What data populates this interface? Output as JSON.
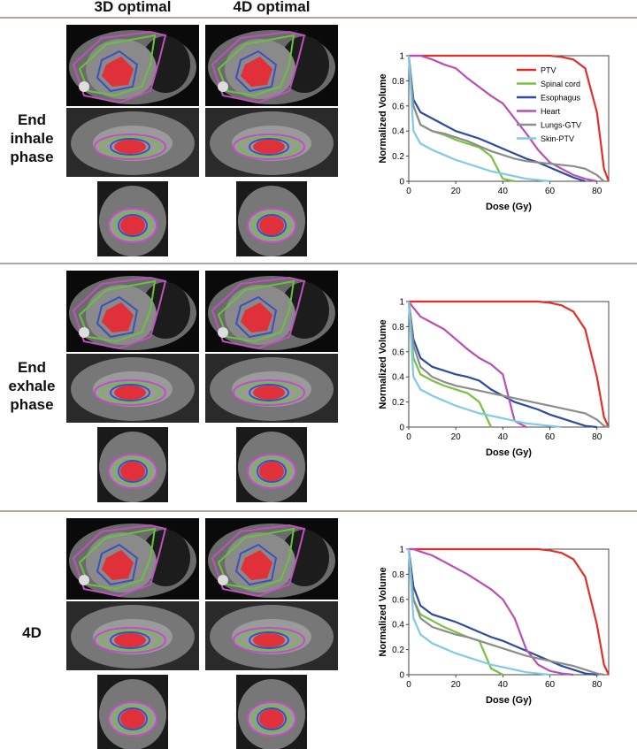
{
  "column_headers": [
    "3D optimal",
    "4D optimal"
  ],
  "row_labels": [
    "End inhale phase",
    "End exhale phase",
    "4D"
  ],
  "chart_data": [
    {
      "type": "line",
      "xlabel": "Dose (Gy)",
      "ylabel": "Normalized Volume",
      "legend": "upper right",
      "x": [
        0,
        2,
        5,
        10,
        15,
        20,
        25,
        30,
        35,
        40,
        45,
        50,
        55,
        60,
        65,
        70,
        75,
        80,
        83,
        85
      ],
      "xlim": [
        0,
        85
      ],
      "xticks": [
        0,
        20,
        40,
        60,
        80
      ],
      "ylim": [
        0,
        1
      ],
      "yticks": [
        0,
        0.2,
        0.4,
        0.6,
        0.8,
        1
      ],
      "series": [
        {
          "name": "PTV",
          "color": "#e0302a",
          "values": [
            1,
            1,
            1,
            1,
            1,
            1,
            1,
            1,
            1,
            1,
            1,
            1,
            1,
            1,
            0.99,
            0.97,
            0.9,
            0.55,
            0.1,
            0
          ]
        },
        {
          "name": "Spinal cord",
          "color": "#7ac143",
          "values": [
            1,
            0.6,
            0.45,
            0.4,
            0.37,
            0.33,
            0.3,
            0.27,
            0.2,
            0.02,
            0,
            null,
            null,
            null,
            null,
            null,
            null,
            null,
            null,
            null
          ]
        },
        {
          "name": "Esophagus",
          "color": "#2e4c9e",
          "values": [
            1,
            0.65,
            0.55,
            0.5,
            0.45,
            0.4,
            0.37,
            0.34,
            0.3,
            0.26,
            0.22,
            0.18,
            0.15,
            0.11,
            0.07,
            0.03,
            0,
            null,
            null,
            null
          ]
        },
        {
          "name": "Heart",
          "color": "#b94fb5",
          "values": [
            1,
            1,
            1,
            0.97,
            0.93,
            0.9,
            0.82,
            0.75,
            0.68,
            0.62,
            0.5,
            0.38,
            0.25,
            0.15,
            0.1,
            0.05,
            0.02,
            0,
            null,
            null
          ]
        },
        {
          "name": "Lungs-GTV",
          "color": "#8c8c8c",
          "values": [
            1,
            0.6,
            0.45,
            0.4,
            0.38,
            0.35,
            0.32,
            0.28,
            0.24,
            0.21,
            0.18,
            0.16,
            0.15,
            0.14,
            0.13,
            0.12,
            0.1,
            0.05,
            0,
            null
          ]
        },
        {
          "name": "Skin-PTV",
          "color": "#7fcbe6",
          "values": [
            1,
            0.4,
            0.3,
            0.25,
            0.21,
            0.17,
            0.14,
            0.11,
            0.08,
            0.06,
            0.04,
            0.02,
            0.01,
            0,
            null,
            null,
            null,
            null,
            null,
            null
          ]
        }
      ]
    },
    {
      "type": "line",
      "xlabel": "Dose (Gy)",
      "ylabel": "Normalized Volume",
      "x": [
        0,
        2,
        5,
        10,
        15,
        20,
        25,
        30,
        35,
        40,
        45,
        50,
        55,
        60,
        65,
        70,
        75,
        80,
        83,
        85
      ],
      "xlim": [
        0,
        85
      ],
      "xticks": [
        0,
        20,
        40,
        60,
        80
      ],
      "ylim": [
        0,
        1
      ],
      "yticks": [
        0,
        0.2,
        0.4,
        0.6,
        0.8,
        1
      ],
      "series": [
        {
          "color": "#e0302a",
          "values": [
            1,
            1,
            1,
            1,
            1,
            1,
            1,
            1,
            1,
            1,
            1,
            1,
            1,
            0.99,
            0.97,
            0.92,
            0.78,
            0.4,
            0.08,
            0
          ]
        },
        {
          "color": "#7ac143",
          "values": [
            1,
            0.55,
            0.42,
            0.37,
            0.33,
            0.3,
            0.27,
            0.2,
            0,
            null,
            null,
            null,
            null,
            null,
            null,
            null,
            null,
            null,
            null,
            null
          ]
        },
        {
          "color": "#2e4c9e",
          "values": [
            1,
            0.7,
            0.55,
            0.48,
            0.45,
            0.42,
            0.4,
            0.37,
            0.3,
            0.25,
            0.2,
            0.17,
            0.14,
            0.1,
            0.07,
            0.04,
            0.01,
            0,
            null,
            null
          ]
        },
        {
          "color": "#b94fb5",
          "values": [
            1,
            0.95,
            0.88,
            0.83,
            0.78,
            0.7,
            0.62,
            0.55,
            0.5,
            0.42,
            0.05,
            0,
            null,
            null,
            null,
            null,
            null,
            null,
            null,
            null
          ]
        },
        {
          "color": "#8c8c8c",
          "values": [
            1,
            0.65,
            0.48,
            0.4,
            0.36,
            0.33,
            0.31,
            0.29,
            0.27,
            0.25,
            0.23,
            0.21,
            0.19,
            0.17,
            0.15,
            0.13,
            0.11,
            0.06,
            0.01,
            0
          ]
        },
        {
          "color": "#7fcbe6",
          "values": [
            1,
            0.4,
            0.3,
            0.25,
            0.21,
            0.17,
            0.14,
            0.11,
            0.09,
            0.07,
            0.05,
            0.03,
            0.02,
            0.01,
            0,
            null,
            null,
            null,
            null,
            null
          ]
        }
      ]
    },
    {
      "type": "line",
      "xlabel": "Dose (Gy)",
      "ylabel": "Normalized Volume",
      "x": [
        0,
        2,
        5,
        10,
        15,
        20,
        25,
        30,
        35,
        40,
        45,
        50,
        55,
        60,
        65,
        70,
        75,
        80,
        83,
        85
      ],
      "xlim": [
        0,
        85
      ],
      "xticks": [
        0,
        20,
        40,
        60,
        80
      ],
      "ylim": [
        0,
        1
      ],
      "yticks": [
        0,
        0.2,
        0.4,
        0.6,
        0.8,
        1
      ],
      "series": [
        {
          "color": "#e0302a",
          "values": [
            1,
            1,
            1,
            1,
            1,
            1,
            1,
            1,
            1,
            1,
            1,
            1,
            1,
            0.99,
            0.97,
            0.92,
            0.78,
            0.4,
            0.08,
            0
          ]
        },
        {
          "color": "#7ac143",
          "values": [
            1,
            0.6,
            0.48,
            0.43,
            0.38,
            0.34,
            0.3,
            0.27,
            0.05,
            0,
            null,
            null,
            null,
            null,
            null,
            null,
            null,
            null,
            null,
            null
          ]
        },
        {
          "color": "#2e4c9e",
          "values": [
            1,
            0.7,
            0.55,
            0.48,
            0.45,
            0.42,
            0.38,
            0.34,
            0.3,
            0.27,
            0.23,
            0.19,
            0.15,
            0.11,
            0.07,
            0.04,
            0.01,
            0,
            null,
            null
          ]
        },
        {
          "color": "#b94fb5",
          "values": [
            1,
            1,
            0.98,
            0.95,
            0.9,
            0.85,
            0.8,
            0.74,
            0.68,
            0.6,
            0.45,
            0.2,
            0.08,
            0.03,
            0.01,
            0,
            null,
            null,
            null,
            null
          ]
        },
        {
          "color": "#8c8c8c",
          "values": [
            1,
            0.6,
            0.45,
            0.38,
            0.35,
            0.32,
            0.3,
            0.27,
            0.24,
            0.21,
            0.18,
            0.15,
            0.13,
            0.11,
            0.09,
            0.07,
            0.04,
            0.01,
            0,
            null
          ]
        },
        {
          "color": "#7fcbe6",
          "values": [
            1,
            0.45,
            0.32,
            0.25,
            0.21,
            0.17,
            0.14,
            0.11,
            0.08,
            0.06,
            0.04,
            0.02,
            0.01,
            0,
            null,
            null,
            null,
            null,
            null,
            null
          ]
        }
      ]
    }
  ]
}
